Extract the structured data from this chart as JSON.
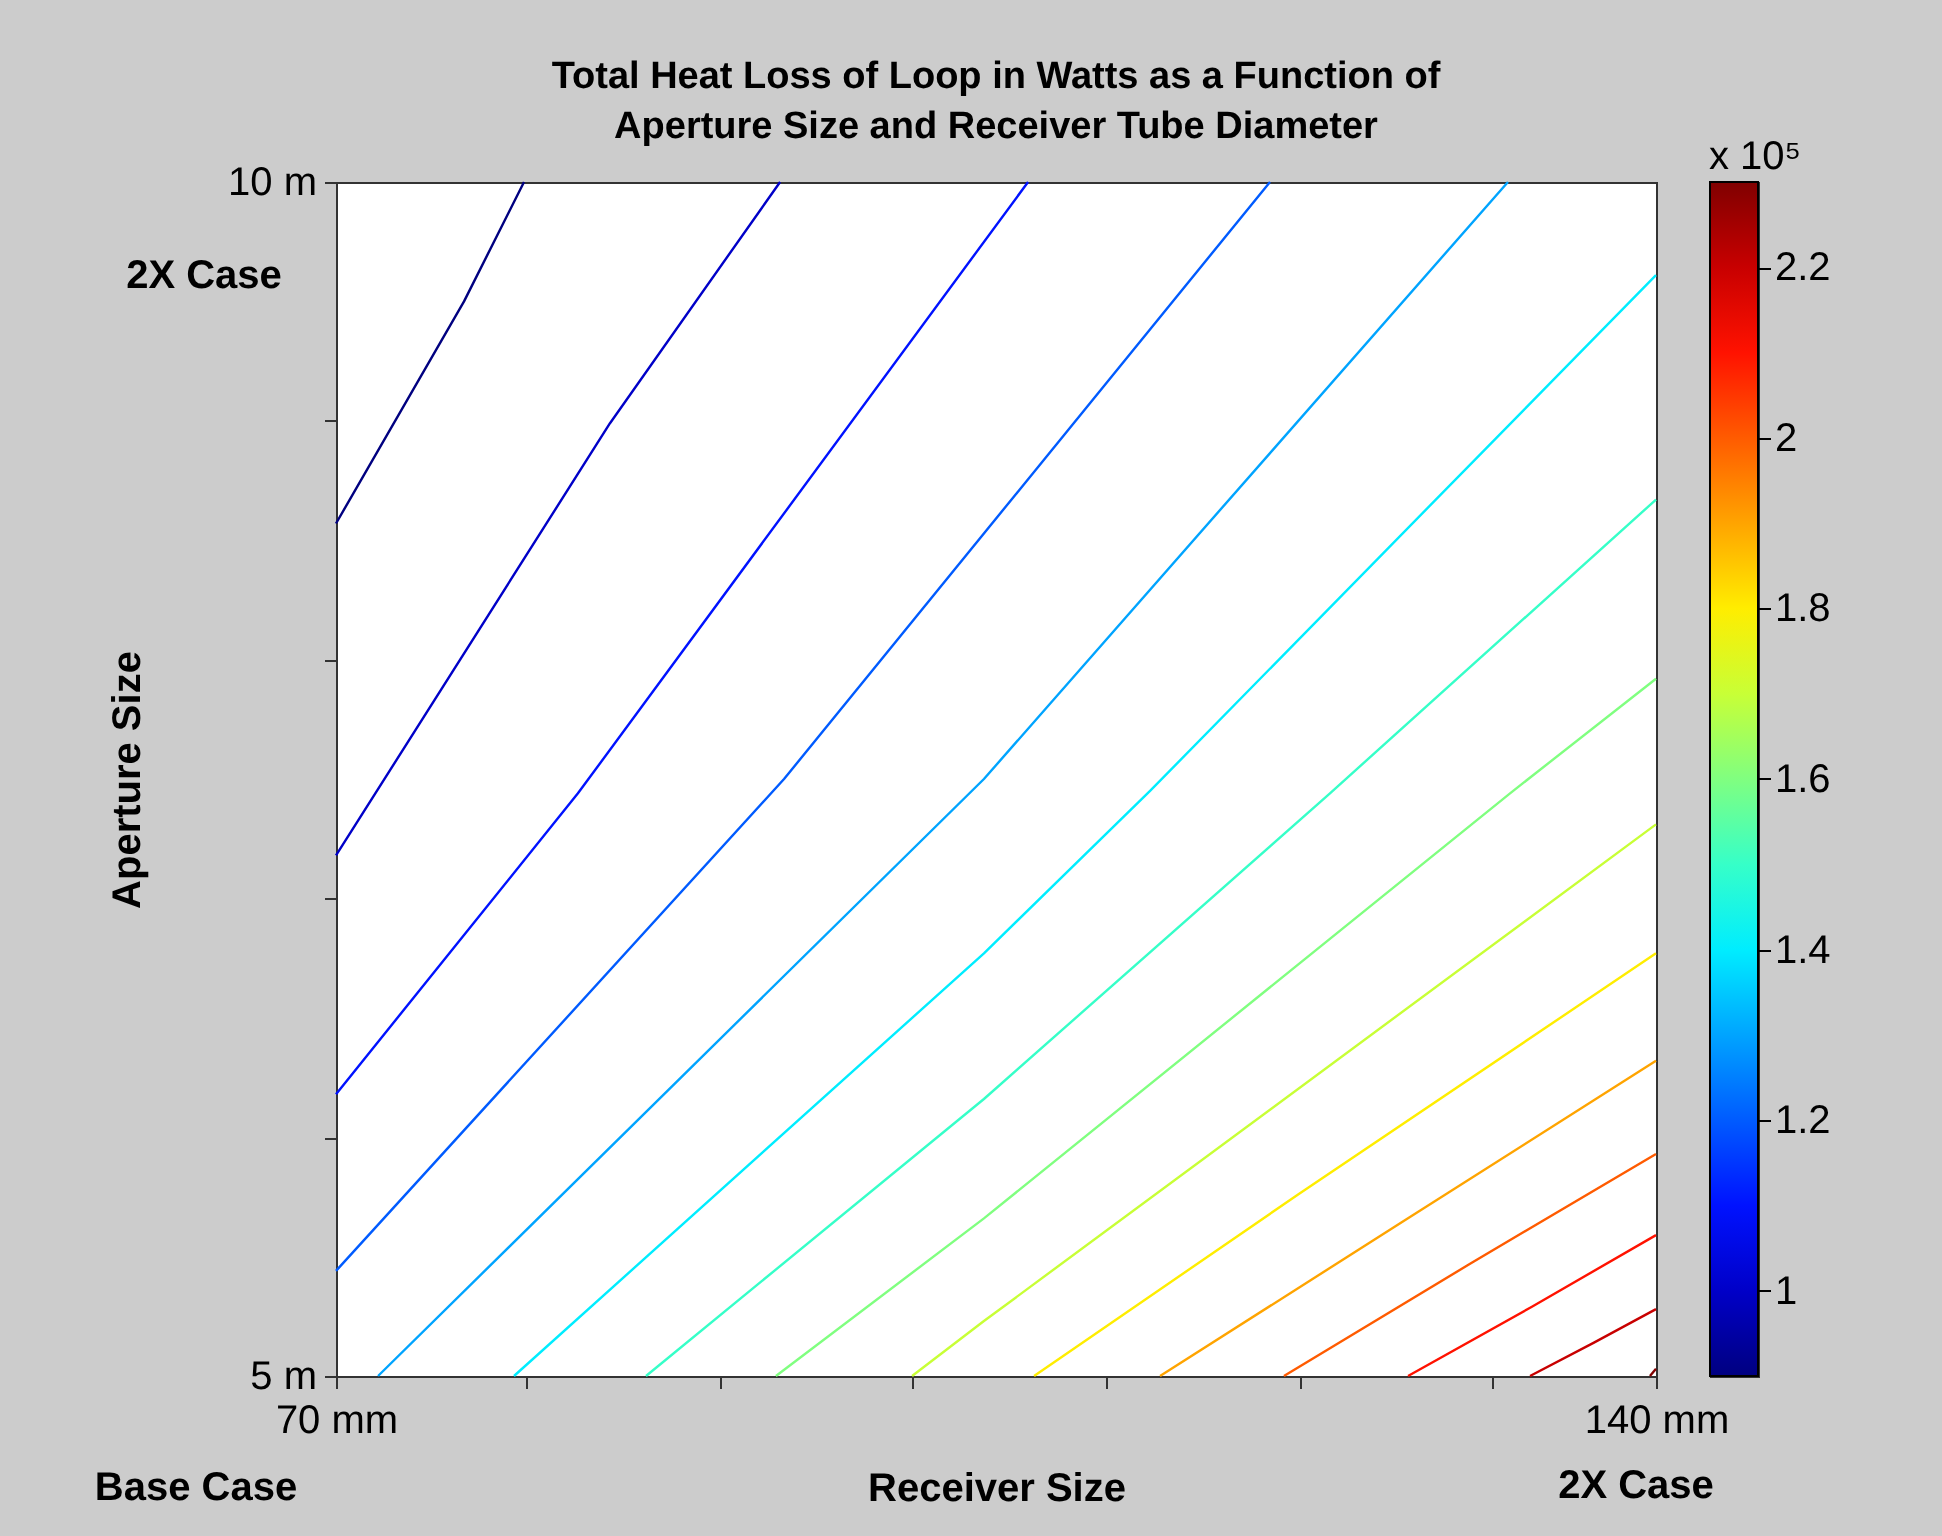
{
  "chart_data": {
    "type": "line",
    "title": "Total Heat Loss of Loop in Watts as a Function of Aperture Size and Receiver Tube Diameter",
    "xlabel": "Receiver Size",
    "ylabel": "Aperture Size",
    "clabel": "x 10⁵",
    "annotations": [
      "2X Case",
      "Base Case",
      "2X Case"
    ],
    "xlim": [
      70,
      140
    ],
    "ylim": [
      5,
      10
    ],
    "xticks": [
      {
        "value": 70,
        "label": "70 mm"
      },
      {
        "value": 80.1,
        "label": null
      },
      {
        "value": 90.4,
        "label": null
      },
      {
        "value": 100.5,
        "label": null
      },
      {
        "value": 110.8,
        "label": null
      },
      {
        "value": 121.1,
        "label": null
      },
      {
        "value": 131.3,
        "label": null
      },
      {
        "value": 140,
        "label": "140 mm"
      }
    ],
    "yticks": [
      {
        "value": 5,
        "label": "5 m"
      },
      {
        "value": 6,
        "label": null
      },
      {
        "value": 7,
        "label": null
      },
      {
        "value": 8,
        "label": null
      },
      {
        "value": 9,
        "label": null
      },
      {
        "value": 10,
        "label": "10 m"
      }
    ],
    "clim": [
      0.9,
      2.3
    ],
    "cticks": [
      1,
      1.2,
      1.4,
      1.6,
      1.8,
      2,
      2.2
    ],
    "marker": "none",
    "line_style": "solid",
    "series": [
      {
        "color": "#000080",
        "x": [
          70,
          76.79,
          79.97
        ],
        "values": [
          8.57,
          9.5,
          10
        ]
      },
      {
        "color": "#0000c8",
        "x": [
          70,
          84.53,
          93.55
        ],
        "values": [
          7.18,
          8.99,
          10
        ]
      },
      {
        "color": "#0012ff",
        "x": [
          70,
          82.83,
          106.7
        ],
        "values": [
          6.18,
          7.44,
          10
        ]
      },
      {
        "color": "#005bff",
        "x": [
          70,
          93.76,
          119.53
        ],
        "values": [
          5.44,
          7.5,
          10
        ]
      },
      {
        "color": "#00a4ff",
        "x": [
          72.23,
          104.36,
          132.15
        ],
        "values": [
          5,
          7.5,
          10
        ]
      },
      {
        "color": "#00edff",
        "x": [
          79.44,
          104.36,
          113.17,
          140
        ],
        "values": [
          5,
          6.77,
          7.45,
          9.61
        ]
      },
      {
        "color": "#36ffc8",
        "x": [
          86.44,
          104.36,
          122.71,
          140
        ],
        "values": [
          5,
          6.16,
          7.44,
          8.67
        ]
      },
      {
        "color": "#80ff80",
        "x": [
          93.33,
          104.36,
          132.26,
          140
        ],
        "values": [
          5,
          5.66,
          7.44,
          7.92
        ]
      },
      {
        "color": "#c8ff36",
        "x": [
          100.55,
          104.36,
          140
        ],
        "values": [
          5,
          5.23,
          7.31
        ]
      },
      {
        "color": "#ffed00",
        "x": [
          107.02,
          121.02,
          140
        ],
        "values": [
          5,
          5.76,
          6.77
        ]
      },
      {
        "color": "#ffa400",
        "x": [
          113.7,
          126.64,
          140
        ],
        "values": [
          5,
          5.65,
          6.32
        ]
      },
      {
        "color": "#ff5b00",
        "x": [
          120.27,
          130.14,
          140
        ],
        "values": [
          5,
          5.47,
          5.93
        ]
      },
      {
        "color": "#ff1200",
        "x": [
          126.85,
          133.42,
          140
        ],
        "values": [
          5,
          5.29,
          5.59
        ]
      },
      {
        "color": "#c80000",
        "x": [
          133.32,
          136.71,
          140
        ],
        "values": [
          5,
          5.14,
          5.28
        ]
      },
      {
        "color": "#800000",
        "x": [
          139.68,
          140
        ],
        "values": [
          5,
          5.03
        ]
      }
    ]
  }
}
